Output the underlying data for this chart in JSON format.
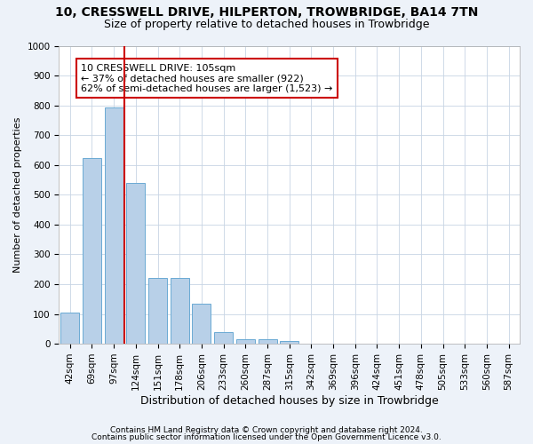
{
  "title": "10, CRESSWELL DRIVE, HILPERTON, TROWBRIDGE, BA14 7TN",
  "subtitle": "Size of property relative to detached houses in Trowbridge",
  "xlabel": "Distribution of detached houses by size in Trowbridge",
  "ylabel": "Number of detached properties",
  "categories": [
    "42sqm",
    "69sqm",
    "97sqm",
    "124sqm",
    "151sqm",
    "178sqm",
    "206sqm",
    "233sqm",
    "260sqm",
    "287sqm",
    "315sqm",
    "342sqm",
    "369sqm",
    "396sqm",
    "424sqm",
    "451sqm",
    "478sqm",
    "505sqm",
    "533sqm",
    "560sqm",
    "587sqm"
  ],
  "values": [
    105,
    622,
    793,
    541,
    222,
    222,
    135,
    40,
    15,
    15,
    10,
    0,
    0,
    0,
    0,
    0,
    0,
    0,
    0,
    0,
    0
  ],
  "bar_color": "#b8d0e8",
  "bar_edge_color": "#6aaad4",
  "vline_x": 2.5,
  "vline_color": "#cc0000",
  "ylim": [
    0,
    1000
  ],
  "yticks": [
    0,
    100,
    200,
    300,
    400,
    500,
    600,
    700,
    800,
    900,
    1000
  ],
  "annotation_text": "10 CRESSWELL DRIVE: 105sqm\n← 37% of detached houses are smaller (922)\n62% of semi-detached houses are larger (1,523) →",
  "annotation_box_facecolor": "#ffffff",
  "annotation_box_edgecolor": "#cc0000",
  "footer_line1": "Contains HM Land Registry data © Crown copyright and database right 2024.",
  "footer_line2": "Contains public sector information licensed under the Open Government Licence v3.0.",
  "background_color": "#edf2f9",
  "plot_bg_color": "#ffffff",
  "grid_color": "#c8d4e4",
  "title_fontsize": 10,
  "subtitle_fontsize": 9,
  "xlabel_fontsize": 9,
  "ylabel_fontsize": 8,
  "tick_fontsize": 7.5,
  "annotation_fontsize": 8,
  "footer_fontsize": 6.5
}
